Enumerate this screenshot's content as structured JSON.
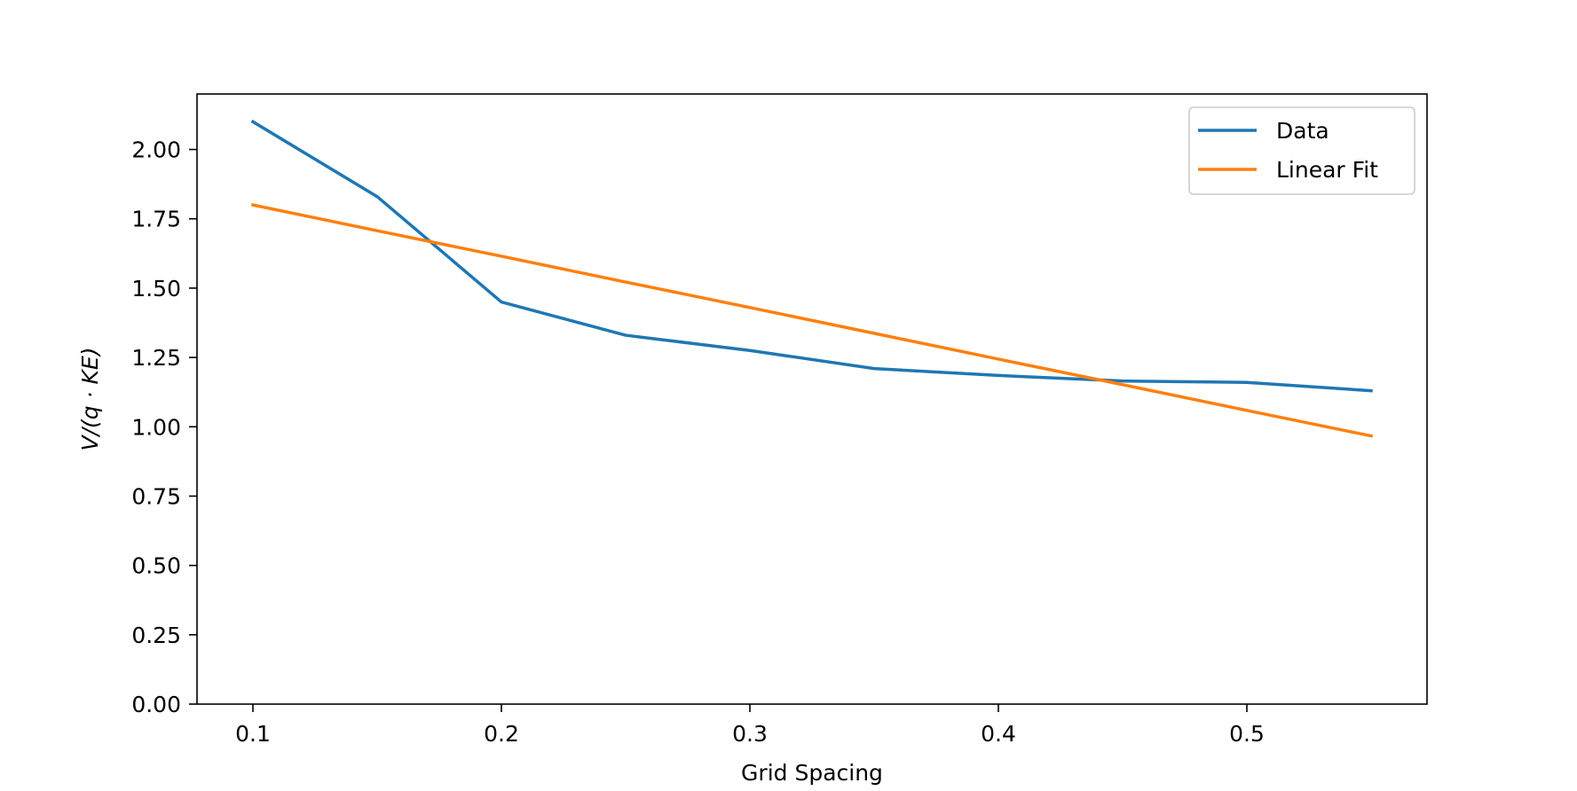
{
  "chart_data": {
    "type": "line",
    "title": "",
    "xlabel": "Grid Spacing",
    "ylabel": "V/(q · KE)",
    "xlim": [
      0.0775,
      0.5725
    ],
    "ylim": [
      0.0,
      2.2
    ],
    "x_ticks": [
      0.1,
      0.2,
      0.3,
      0.4,
      0.5
    ],
    "x_tick_labels": [
      "0.1",
      "0.2",
      "0.3",
      "0.4",
      "0.5"
    ],
    "y_ticks": [
      0.0,
      0.25,
      0.5,
      0.75,
      1.0,
      1.25,
      1.5,
      1.75,
      2.0
    ],
    "y_tick_labels": [
      "0.00",
      "0.25",
      "0.50",
      "0.75",
      "1.00",
      "1.25",
      "1.50",
      "1.75",
      "2.00"
    ],
    "grid": false,
    "legend_position": "top-right",
    "x": [
      0.1,
      0.15,
      0.2,
      0.25,
      0.3,
      0.35,
      0.4,
      0.45,
      0.5,
      0.55
    ],
    "series": [
      {
        "name": "Data",
        "color": "#1f77b4",
        "values": [
          2.1,
          1.83,
          1.45,
          1.33,
          1.275,
          1.21,
          1.185,
          1.165,
          1.16,
          1.13
        ]
      },
      {
        "name": "Linear Fit",
        "color": "#ff7f0e",
        "values": [
          1.8,
          1.707,
          1.615,
          1.522,
          1.43,
          1.337,
          1.244,
          1.152,
          1.059,
          0.967
        ]
      }
    ]
  }
}
